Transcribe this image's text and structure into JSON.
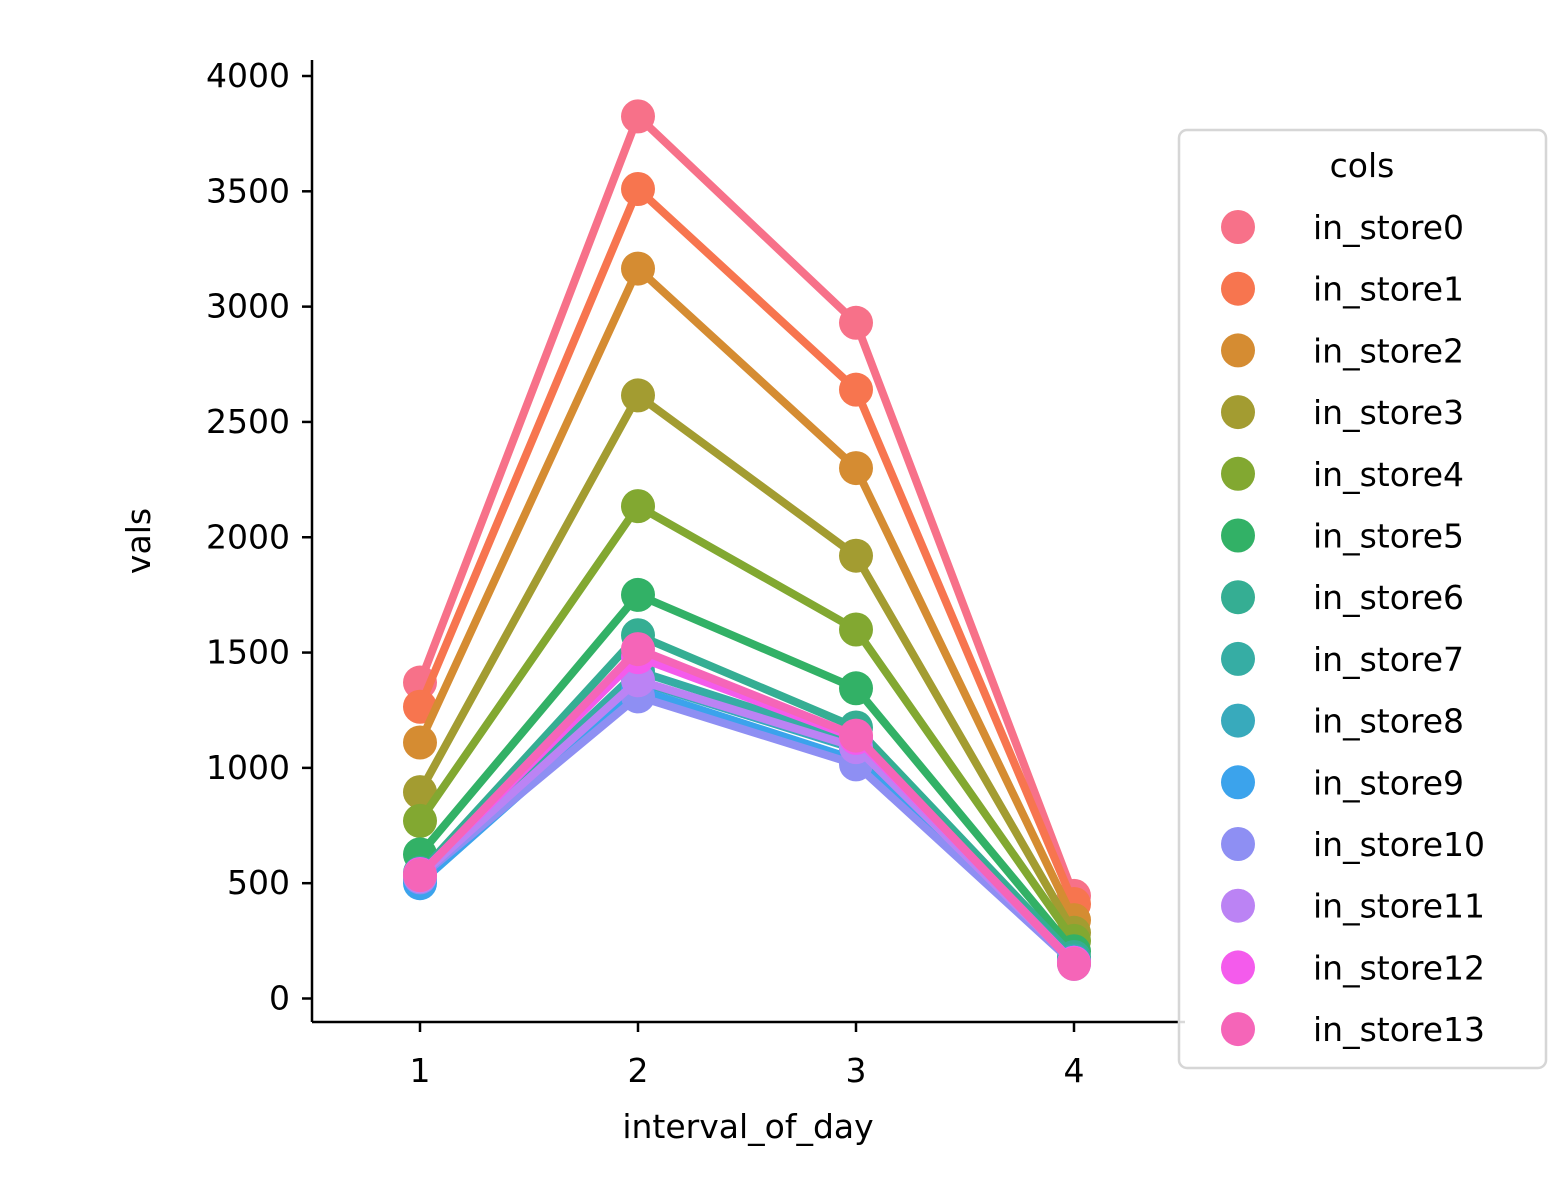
{
  "chart_data": {
    "type": "line",
    "title": "",
    "xlabel": "interval_of_day",
    "ylabel": "vals",
    "categories": [
      "1",
      "2",
      "3",
      "4"
    ],
    "yticks": [
      0,
      500,
      1000,
      1500,
      2000,
      2500,
      3000,
      3500,
      4000
    ],
    "ylim": [
      -100,
      4070
    ],
    "grid": false,
    "legend": {
      "title": "cols",
      "position": "right"
    },
    "series": [
      {
        "name": "in_store0",
        "color": "#f77189",
        "values": [
          1370,
          3825,
          2930,
          445
        ]
      },
      {
        "name": "in_store1",
        "color": "#f7754f",
        "values": [
          1265,
          3510,
          2640,
          410
        ]
      },
      {
        "name": "in_store2",
        "color": "#d58c32",
        "values": [
          1110,
          3165,
          2300,
          340
        ]
      },
      {
        "name": "in_store3",
        "color": "#a39c31",
        "values": [
          895,
          2615,
          1920,
          285
        ]
      },
      {
        "name": "in_store4",
        "color": "#82a831",
        "values": [
          770,
          2135,
          1600,
          250
        ]
      },
      {
        "name": "in_store5",
        "color": "#32b166",
        "values": [
          625,
          1750,
          1345,
          205
        ]
      },
      {
        "name": "in_store6",
        "color": "#35ae93",
        "values": [
          545,
          1575,
          1175,
          180
        ]
      },
      {
        "name": "in_store7",
        "color": "#36ada4",
        "values": [
          525,
          1420,
          1115,
          165
        ]
      },
      {
        "name": "in_store8",
        "color": "#38aabc",
        "values": [
          515,
          1375,
          1080,
          160
        ]
      },
      {
        "name": "in_store9",
        "color": "#3ba3ec",
        "values": [
          500,
          1340,
          1035,
          155
        ]
      },
      {
        "name": "in_store10",
        "color": "#8e8ff3",
        "values": [
          525,
          1310,
          1015,
          150
        ]
      },
      {
        "name": "in_store11",
        "color": "#bb83f4",
        "values": [
          530,
          1380,
          1090,
          155
        ]
      },
      {
        "name": "in_store12",
        "color": "#f45bec",
        "values": [
          540,
          1480,
          1130,
          155
        ]
      },
      {
        "name": "in_store13",
        "color": "#f565b8",
        "values": [
          535,
          1515,
          1140,
          150
        ]
      }
    ]
  }
}
